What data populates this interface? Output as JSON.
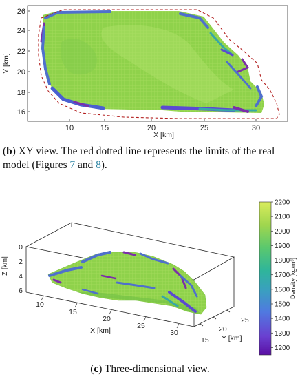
{
  "panel_b": {
    "caption_label": "b",
    "caption_text": " XY view.  The red dotted line represents the limits of the real model (Figures ",
    "caption_ref1": "7",
    "caption_and": " and ",
    "caption_ref2": "8",
    "caption_end": ").",
    "xlabel": "X [km]",
    "ylabel": "Y [km]",
    "x_ticks": [
      "10",
      "15",
      "20",
      "25",
      "30"
    ],
    "y_ticks": [
      "16",
      "18",
      "20",
      "22",
      "24",
      "26"
    ],
    "limits_color": "#b21e1e"
  },
  "panel_c": {
    "caption_label": "c",
    "caption_text": " Three-dimensional view.",
    "zlabel": "Z [km]",
    "xlabel": "X [km]",
    "ylabel": "Y [km]",
    "z_ticks": [
      "0",
      "2",
      "4",
      "6"
    ],
    "x_ticks": [
      "10",
      "15",
      "20",
      "25",
      "30"
    ],
    "y_ticks": [
      "15",
      "20",
      "25"
    ],
    "colorbar_label": "Density [kg/m³]",
    "colorbar_ticks": [
      "2200",
      "2100",
      "2000",
      "1900",
      "1800",
      "1700",
      "1600",
      "1500",
      "1400",
      "1300",
      "1200"
    ],
    "colorbar_range": [
      1150,
      2200
    ]
  },
  "colors": {
    "body_green": "#8ed24a",
    "edge_blue": "#4f70cc",
    "edge_purple": "#7b2ea8",
    "edge_teal": "#37a7a6"
  }
}
